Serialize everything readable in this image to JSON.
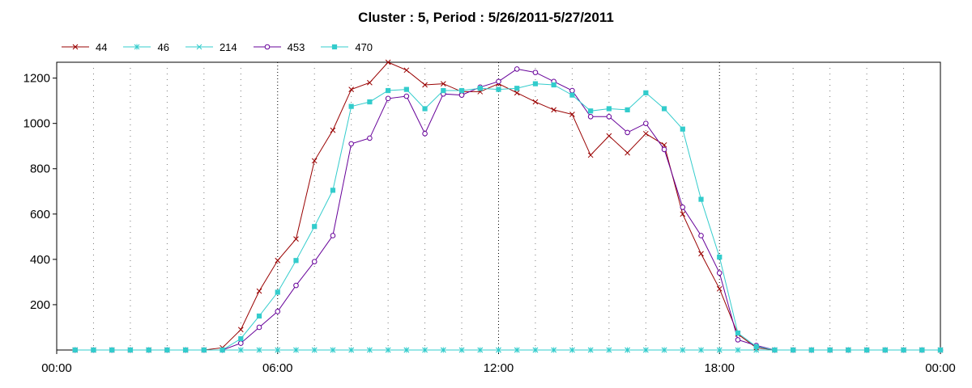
{
  "chart_data": {
    "type": "line",
    "title": "Cluster : 5, Period : 5/26/2011-5/27/2011",
    "xlabel": "",
    "ylabel": "",
    "x_ticks": [
      "00:00",
      "06:00",
      "12:00",
      "18:00",
      "00:00"
    ],
    "x_range_hours": [
      0,
      24
    ],
    "y_ticks": [
      200,
      400,
      600,
      800,
      1000,
      1200
    ],
    "ylim": [
      0,
      1270
    ],
    "grid": "vertical dotted",
    "legend_position": "top-left",
    "x_hours": [
      0.5,
      1,
      1.5,
      2,
      2.5,
      3,
      3.5,
      4,
      4.5,
      5,
      5.5,
      6,
      6.5,
      7,
      7.5,
      8,
      8.5,
      9,
      9.5,
      10,
      10.5,
      11,
      11.5,
      12,
      12.5,
      13,
      13.5,
      14,
      14.5,
      15,
      15.5,
      16,
      16.5,
      17,
      17.5,
      18,
      18.5,
      19,
      19.5,
      20,
      20.5,
      21,
      21.5,
      22,
      22.5,
      23,
      23.5,
      24
    ],
    "series": [
      {
        "name": "44",
        "color": "#990000",
        "marker": "x",
        "values": [
          0,
          0,
          0,
          0,
          0,
          0,
          0,
          0,
          10,
          90,
          260,
          395,
          490,
          835,
          970,
          1150,
          1180,
          1270,
          1235,
          1170,
          1175,
          1140,
          1140,
          1175,
          1135,
          1095,
          1060,
          1040,
          860,
          945,
          870,
          955,
          905,
          600,
          425,
          270,
          70,
          10,
          0,
          0,
          0,
          0,
          0,
          0,
          0,
          0,
          0,
          0
        ]
      },
      {
        "name": "46",
        "color": "#33cccc",
        "marker": "asterisk",
        "values": [
          0,
          0,
          0,
          0,
          0,
          0,
          0,
          0,
          0,
          0,
          0,
          0,
          0,
          0,
          0,
          0,
          0,
          0,
          0,
          0,
          0,
          0,
          0,
          0,
          0,
          0,
          0,
          0,
          0,
          0,
          0,
          0,
          0,
          0,
          0,
          0,
          0,
          0,
          0,
          0,
          0,
          0,
          0,
          0,
          0,
          0,
          0,
          0
        ]
      },
      {
        "name": "214",
        "color": "#33cccc",
        "marker": "x",
        "values": [
          0,
          0,
          0,
          0,
          0,
          0,
          0,
          0,
          0,
          0,
          0,
          0,
          0,
          0,
          0,
          0,
          0,
          0,
          0,
          0,
          0,
          0,
          0,
          0,
          0,
          0,
          0,
          0,
          0,
          0,
          0,
          0,
          0,
          0,
          0,
          0,
          0,
          0,
          0,
          0,
          0,
          0,
          0,
          0,
          0,
          0,
          0,
          0
        ]
      },
      {
        "name": "453",
        "color": "#660099",
        "marker": "circle",
        "values": [
          0,
          0,
          0,
          0,
          0,
          0,
          0,
          0,
          0,
          30,
          100,
          170,
          285,
          390,
          505,
          910,
          935,
          1110,
          1120,
          955,
          1130,
          1125,
          1160,
          1185,
          1240,
          1225,
          1185,
          1145,
          1030,
          1030,
          960,
          1000,
          885,
          630,
          505,
          340,
          45,
          20,
          0,
          0,
          0,
          0,
          0,
          0,
          0,
          0,
          0,
          0
        ]
      },
      {
        "name": "470",
        "color": "#33cccc",
        "marker": "square",
        "values": [
          0,
          0,
          0,
          0,
          0,
          0,
          0,
          0,
          0,
          50,
          150,
          255,
          395,
          545,
          705,
          1075,
          1095,
          1145,
          1150,
          1065,
          1145,
          1145,
          1155,
          1150,
          1155,
          1175,
          1170,
          1125,
          1055,
          1065,
          1060,
          1135,
          1065,
          975,
          665,
          410,
          75,
          15,
          0,
          0,
          0,
          0,
          0,
          0,
          0,
          0,
          0,
          0
        ]
      }
    ]
  }
}
